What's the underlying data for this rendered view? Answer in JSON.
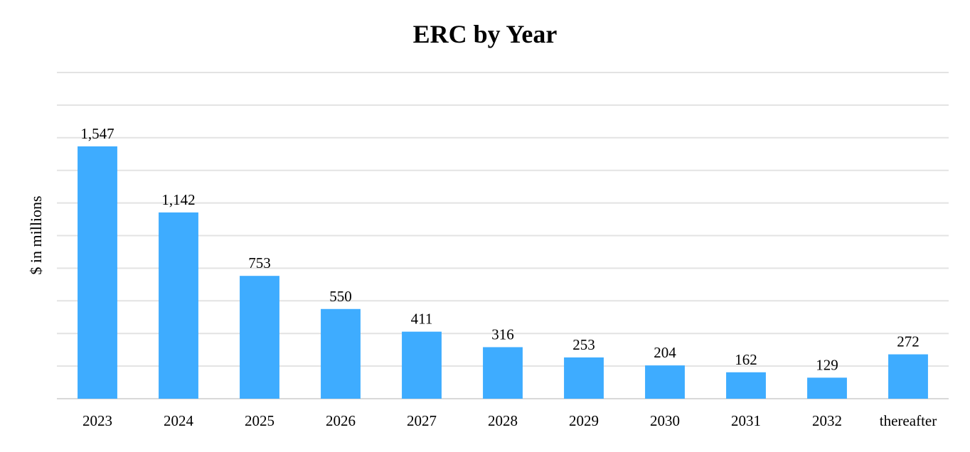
{
  "chart_data": {
    "type": "bar",
    "title": "ERC by Year",
    "xlabel": "",
    "ylabel": "$ in millions",
    "categories": [
      "2023",
      "2024",
      "2025",
      "2026",
      "2027",
      "2028",
      "2029",
      "2030",
      "2031",
      "2032",
      "thereafter"
    ],
    "values": [
      1547,
      1142,
      753,
      550,
      411,
      316,
      253,
      204,
      162,
      129,
      272
    ],
    "value_labels": [
      "1,547",
      "1,142",
      "753",
      "550",
      "411",
      "316",
      "253",
      "204",
      "162",
      "129",
      "272"
    ],
    "ylim": [
      0,
      2000
    ],
    "ytick_step": 200,
    "show_ytick_labels": false,
    "grid": true,
    "legend": "none",
    "bar_color": "#3eacff"
  }
}
